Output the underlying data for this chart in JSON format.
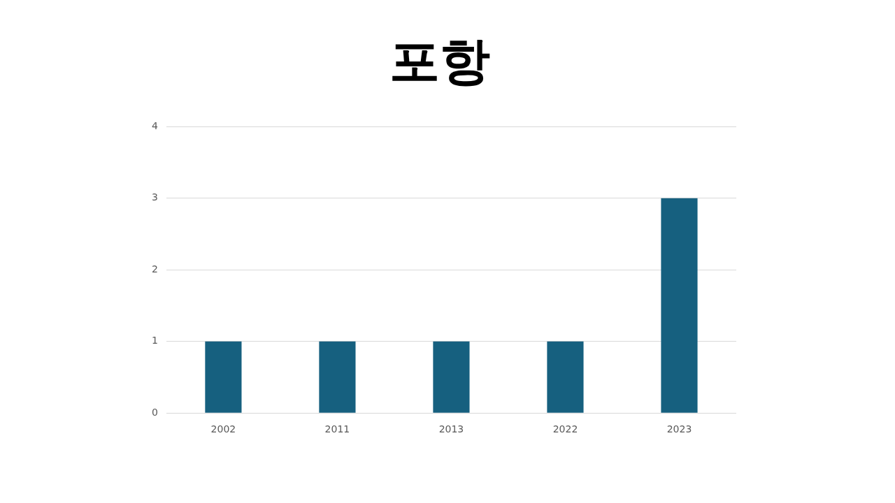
{
  "chart_data": {
    "type": "bar",
    "title": "포항",
    "categories": [
      "2002",
      "2011",
      "2013",
      "2022",
      "2023"
    ],
    "values": [
      1,
      1,
      1,
      1,
      3
    ],
    "color": "#16607f",
    "ylim": [
      0,
      4
    ],
    "yticks": [
      0,
      1,
      2,
      3,
      4
    ],
    "grid": "y",
    "legend": false
  }
}
